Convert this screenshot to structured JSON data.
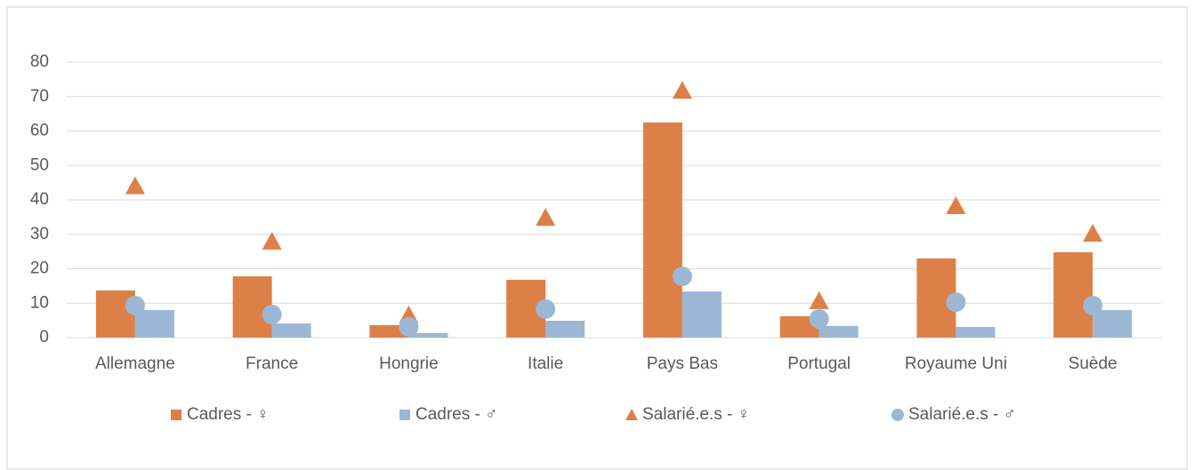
{
  "chart_data": {
    "type": "bar",
    "categories": [
      "Allemagne",
      "France",
      "Hongrie",
      "Italie",
      "Pays Bas",
      "Portugal",
      "Royaume Uni",
      "Suède"
    ],
    "series": [
      {
        "name": "Cadres - ♀",
        "color": "#dd8047",
        "marker": "bar",
        "values": [
          13.7,
          17.8,
          3.6,
          16.8,
          62.5,
          6.2,
          23,
          24.8
        ]
      },
      {
        "name": "Cadres - ♂",
        "color": "#9bb7d4",
        "marker": "bar",
        "values": [
          8,
          4.1,
          1.3,
          4.9,
          13.4,
          3.4,
          3.1,
          8
        ]
      },
      {
        "name": "Salarié.e.s - ♀",
        "color": "#dd8047",
        "marker": "triangle",
        "values": [
          44,
          27.9,
          6.5,
          34.8,
          71.7,
          10.6,
          38.2,
          30.2
        ]
      },
      {
        "name": "Salarié.e.s - ♂",
        "color": "#9bb7d4",
        "marker": "circle",
        "values": [
          9.3,
          6.7,
          3.1,
          8.3,
          17.8,
          5.4,
          10.3,
          9.3
        ]
      }
    ],
    "ylim": [
      0,
      80
    ],
    "yticks": [
      0,
      10,
      20,
      30,
      40,
      50,
      60,
      70,
      80
    ],
    "grid": true,
    "legend": "bottom"
  }
}
